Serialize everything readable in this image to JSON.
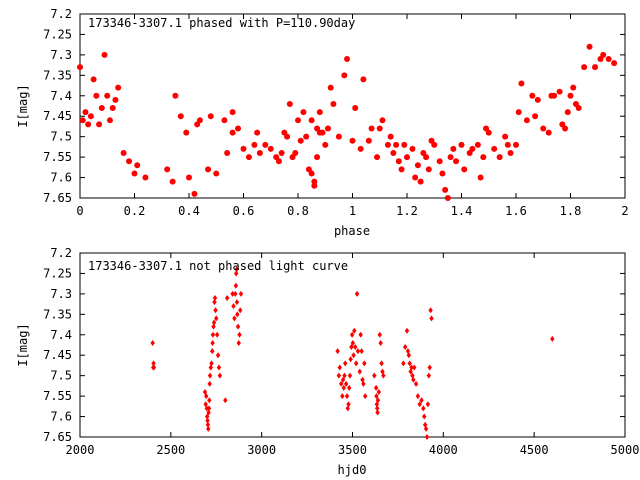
{
  "colors": {
    "series": "#ff0000",
    "axes": "#000000",
    "background": "#ffffff"
  },
  "chart_data": [
    {
      "type": "scatter",
      "title": "173346-3307.1 phased with P=110.90day",
      "xlabel": "phase",
      "ylabel": "I[mag]",
      "xlim": [
        0,
        2
      ],
      "ylim": [
        7.2,
        7.65
      ],
      "y_inverted": true,
      "grid": false,
      "marker": "filled-circle",
      "xticks": [
        "0",
        "0.2",
        "0.4",
        "0.6",
        "0.8",
        "1",
        "1.2",
        "1.4",
        "1.6",
        "1.8",
        "2"
      ],
      "yticks": [
        "7.2",
        "7.25",
        "7.3",
        "7.35",
        "7.4",
        "7.45",
        "7.5",
        "7.55",
        "7.6",
        "7.65"
      ],
      "series": [
        {
          "x": [
            0.0,
            0.01,
            0.02,
            0.03,
            0.04,
            0.05,
            0.06,
            0.07,
            0.08,
            0.09,
            0.1,
            0.11,
            0.12,
            0.13,
            0.14,
            0.16,
            0.18,
            0.2,
            0.21,
            0.24,
            0.32,
            0.34,
            0.35,
            0.37,
            0.39,
            0.4,
            0.42,
            0.43,
            0.44,
            0.47,
            0.48,
            0.5,
            0.53,
            0.54,
            0.56,
            0.56,
            0.58,
            0.6,
            0.62,
            0.64,
            0.65,
            0.66,
            0.68,
            0.7,
            0.72,
            0.73,
            0.74,
            0.75,
            0.76,
            0.77,
            0.78,
            0.79,
            0.8,
            0.81,
            0.82,
            0.83,
            0.84,
            0.85,
            0.85,
            0.86,
            0.86,
            0.87,
            0.87,
            0.88,
            0.88,
            0.89,
            0.9,
            0.91,
            0.92,
            0.93,
            0.95,
            0.97,
            0.98,
            1.0,
            1.01,
            1.03,
            1.04,
            1.06,
            1.07,
            1.09,
            1.1,
            1.11,
            1.13,
            1.14,
            1.15,
            1.16,
            1.17,
            1.18,
            1.19,
            1.2,
            1.22,
            1.23,
            1.24,
            1.25,
            1.26,
            1.27,
            1.28,
            1.29,
            1.3,
            1.32,
            1.33,
            1.34,
            1.35,
            1.36,
            1.37,
            1.38,
            1.4,
            1.41,
            1.43,
            1.44,
            1.46,
            1.47,
            1.48,
            1.49,
            1.5,
            1.52,
            1.54,
            1.56,
            1.57,
            1.58,
            1.6,
            1.61,
            1.62,
            1.64,
            1.66,
            1.67,
            1.68,
            1.7,
            1.72,
            1.73,
            1.74,
            1.76,
            1.77,
            1.78,
            1.79,
            1.8,
            1.81,
            1.82,
            1.83,
            1.85,
            1.87,
            1.89,
            1.91,
            1.92,
            1.94,
            1.96
          ],
          "y": [
            7.33,
            7.46,
            7.44,
            7.47,
            7.45,
            7.36,
            7.4,
            7.47,
            7.43,
            7.3,
            7.4,
            7.46,
            7.43,
            7.41,
            7.38,
            7.54,
            7.56,
            7.59,
            7.57,
            7.6,
            7.58,
            7.61,
            7.4,
            7.45,
            7.49,
            7.6,
            7.64,
            7.47,
            7.46,
            7.58,
            7.45,
            7.59,
            7.46,
            7.54,
            7.44,
            7.49,
            7.48,
            7.53,
            7.55,
            7.52,
            7.49,
            7.54,
            7.52,
            7.53,
            7.55,
            7.56,
            7.54,
            7.49,
            7.5,
            7.42,
            7.55,
            7.54,
            7.46,
            7.51,
            7.44,
            7.5,
            7.58,
            7.59,
            7.46,
            7.61,
            7.62,
            7.48,
            7.55,
            7.49,
            7.44,
            7.49,
            7.52,
            7.48,
            7.38,
            7.42,
            7.5,
            7.35,
            7.31,
            7.51,
            7.43,
            7.53,
            7.36,
            7.51,
            7.48,
            7.55,
            7.48,
            7.46,
            7.52,
            7.5,
            7.54,
            7.52,
            7.56,
            7.58,
            7.52,
            7.55,
            7.53,
            7.6,
            7.57,
            7.61,
            7.54,
            7.55,
            7.58,
            7.51,
            7.52,
            7.56,
            7.59,
            7.63,
            7.65,
            7.55,
            7.53,
            7.56,
            7.52,
            7.58,
            7.54,
            7.53,
            7.52,
            7.6,
            7.55,
            7.48,
            7.49,
            7.53,
            7.55,
            7.5,
            7.52,
            7.54,
            7.52,
            7.44,
            7.37,
            7.46,
            7.4,
            7.45,
            7.41,
            7.48,
            7.49,
            7.4,
            7.4,
            7.39,
            7.47,
            7.48,
            7.44,
            7.4,
            7.38,
            7.42,
            7.43,
            7.33,
            7.28,
            7.33,
            7.31,
            7.3,
            7.31,
            7.32
          ]
        }
      ]
    },
    {
      "type": "scatter",
      "title": "173346-3307.1 not phased light curve",
      "xlabel": "hjd0",
      "ylabel": "I[mag]",
      "xlim": [
        2000,
        5000
      ],
      "ylim": [
        7.2,
        7.65
      ],
      "y_inverted": true,
      "grid": false,
      "marker": "diamond",
      "xticks": [
        "2000",
        "2500",
        "3000",
        "3500",
        "4000",
        "4500",
        "5000"
      ],
      "yticks": [
        "7.2",
        "7.25",
        "7.3",
        "7.35",
        "7.4",
        "7.45",
        "7.5",
        "7.55",
        "7.6",
        "7.65"
      ],
      "series": [
        {
          "x": [
            2400,
            2403,
            2405,
            2407,
            2688,
            2692,
            2695,
            2698,
            2700,
            2702,
            2704,
            2706,
            2708,
            2710,
            2712,
            2714,
            2716,
            2720,
            2724,
            2728,
            2730,
            2732,
            2735,
            2738,
            2740,
            2743,
            2746,
            2750,
            2755,
            2760,
            2765,
            2770,
            2800,
            2810,
            2840,
            2845,
            2850,
            2855,
            2858,
            2860,
            2862,
            2864,
            2866,
            2870,
            2874,
            2878,
            2882,
            2886,
            3418,
            3425,
            3430,
            3438,
            3444,
            3448,
            3452,
            3456,
            3460,
            3465,
            3470,
            3474,
            3478,
            3482,
            3486,
            3490,
            3494,
            3498,
            3502,
            3506,
            3510,
            3515,
            3520,
            3525,
            3530,
            3540,
            3545,
            3550,
            3555,
            3560,
            3565,
            3570,
            3620,
            3630,
            3632,
            3634,
            3636,
            3638,
            3640,
            3645,
            3650,
            3655,
            3660,
            3665,
            3670,
            3780,
            3790,
            3800,
            3805,
            3810,
            3815,
            3820,
            3825,
            3830,
            3835,
            3840,
            3850,
            3860,
            3870,
            3880,
            3890,
            3895,
            3900,
            3905,
            3910,
            3915,
            3920,
            3925,
            3930,
            3935,
            4600
          ],
          "y": [
            7.42,
            7.48,
            7.47,
            7.48,
            7.54,
            7.57,
            7.55,
            7.58,
            7.6,
            7.61,
            7.62,
            7.63,
            7.59,
            7.58,
            7.56,
            7.52,
            7.5,
            7.48,
            7.47,
            7.44,
            7.42,
            7.4,
            7.38,
            7.37,
            7.32,
            7.31,
            7.34,
            7.36,
            7.4,
            7.45,
            7.48,
            7.5,
            7.56,
            7.31,
            7.3,
            7.33,
            7.36,
            7.3,
            7.28,
            7.25,
            7.24,
            7.32,
            7.35,
            7.38,
            7.42,
            7.4,
            7.34,
            7.3,
            7.44,
            7.5,
            7.48,
            7.52,
            7.55,
            7.51,
            7.53,
            7.5,
            7.47,
            7.52,
            7.55,
            7.58,
            7.57,
            7.53,
            7.5,
            7.46,
            7.43,
            7.4,
            7.42,
            7.45,
            7.39,
            7.43,
            7.47,
            7.3,
            7.44,
            7.49,
            7.4,
            7.44,
            7.51,
            7.52,
            7.47,
            7.55,
            7.5,
            7.53,
            7.55,
            7.57,
            7.58,
            7.59,
            7.56,
            7.54,
            7.4,
            7.42,
            7.47,
            7.49,
            7.5,
            7.47,
            7.43,
            7.39,
            7.44,
            7.45,
            7.47,
            7.49,
            7.48,
            7.5,
            7.51,
            7.48,
            7.52,
            7.55,
            7.57,
            7.56,
            7.58,
            7.6,
            7.62,
            7.63,
            7.65,
            7.57,
            7.5,
            7.48,
            7.34,
            7.36,
            7.41
          ]
        }
      ]
    }
  ]
}
